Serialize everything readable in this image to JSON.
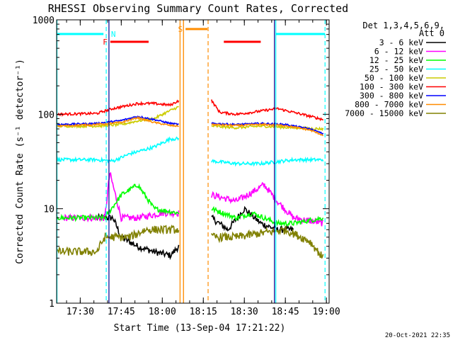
{
  "chart_data": {
    "type": "line",
    "title": "RHESSI Observing Summary Count Rates, Corrected",
    "xlabel": "Start Time (13-Sep-04 17:21:22)",
    "ylabel": "Corrected Count Rate (s⁻¹ detector⁻¹)",
    "x_ticks": [
      "17:30",
      "17:45",
      "18:00",
      "18:15",
      "18:30",
      "18:45",
      "19:00"
    ],
    "x_range": [
      "17:21:22",
      "19:01:00"
    ],
    "y_scale": "log",
    "y_range": [
      1,
      1000
    ],
    "y_ticks": [
      "1",
      "10",
      "100",
      "1000"
    ],
    "legend_title_1": "Det 1,3,4,5,6,9,",
    "legend_title_2": "Att 0",
    "legend_position": "right",
    "timestamp": "20-Oct-2021 22:35",
    "flags": [
      {
        "label": "N",
        "color": "#00ffff",
        "start": "17:40:30",
        "end": "17:41:30",
        "style": "label"
      },
      {
        "label": "F",
        "color": "#ff0000",
        "start": "17:41:00",
        "end": "17:55:00",
        "style": "bar"
      },
      {
        "label": "S",
        "color": "#ff8c00",
        "start": "18:08:30",
        "end": "18:16:30",
        "style": "bar"
      }
    ],
    "cyan_bars": [
      {
        "start": "17:21:22",
        "end": "17:38:30"
      },
      {
        "start": "18:41:30",
        "end": "18:59:30"
      }
    ],
    "vertical_lines": [
      {
        "time": "17:21:30",
        "color": "#00ffff",
        "dash": false
      },
      {
        "time": "17:39:30",
        "color": "#00ffff",
        "dash": true
      },
      {
        "time": "17:40:30",
        "color": "#00008b",
        "dash": false
      },
      {
        "time": "18:06:30",
        "color": "#ff8c00",
        "dash": false
      },
      {
        "time": "18:07:45",
        "color": "#ff8c00",
        "dash": false
      },
      {
        "time": "18:16:45",
        "color": "#ff8c00",
        "dash": true
      },
      {
        "time": "18:41:30",
        "color": "#00ffff",
        "dash": false
      },
      {
        "time": "18:41:00",
        "color": "#00008b",
        "dash": false
      },
      {
        "time": "18:59:30",
        "color": "#00ffff",
        "dash": true
      }
    ],
    "series": [
      {
        "name": "3 - 6 keV",
        "color": "#000000",
        "noise": 0.08,
        "seg1": [
          [
            17.6,
            8
          ],
          [
            17.7,
            8
          ],
          [
            17.75,
            5
          ],
          [
            17.85,
            4
          ],
          [
            17.95,
            3.5
          ],
          [
            18.05,
            3.2
          ],
          [
            18.1,
            4
          ]
        ],
        "seg2": [
          [
            18.3,
            8
          ],
          [
            18.4,
            6
          ],
          [
            18.5,
            10
          ],
          [
            18.6,
            7
          ],
          [
            18.7,
            6
          ],
          [
            18.8,
            6
          ]
        ]
      },
      {
        "name": "6 - 12 keV",
        "color": "#ff00ff",
        "noise": 0.08,
        "seg1": [
          [
            17.4,
            8
          ],
          [
            17.65,
            8
          ],
          [
            17.68,
            24
          ],
          [
            17.75,
            8
          ],
          [
            17.85,
            8
          ],
          [
            18.0,
            9
          ],
          [
            18.1,
            9
          ]
        ],
        "seg2": [
          [
            18.3,
            14
          ],
          [
            18.45,
            12
          ],
          [
            18.55,
            15
          ],
          [
            18.62,
            18
          ],
          [
            18.7,
            12
          ],
          [
            18.8,
            8
          ],
          [
            18.98,
            7
          ]
        ]
      },
      {
        "name": "12 - 25 keV",
        "color": "#00ff00",
        "noise": 0.06,
        "seg1": [
          [
            17.36,
            8
          ],
          [
            17.65,
            8
          ],
          [
            17.75,
            14
          ],
          [
            17.85,
            18
          ],
          [
            17.95,
            10
          ],
          [
            18.1,
            9
          ]
        ],
        "seg2": [
          [
            18.3,
            10
          ],
          [
            18.45,
            8
          ],
          [
            18.55,
            9
          ],
          [
            18.7,
            7
          ],
          [
            18.8,
            7
          ],
          [
            18.98,
            8
          ]
        ]
      },
      {
        "name": "25 - 50 keV",
        "color": "#00ffff",
        "noise": 0.04,
        "seg1": [
          [
            17.36,
            33
          ],
          [
            17.6,
            33
          ],
          [
            17.7,
            32
          ],
          [
            17.8,
            38
          ],
          [
            17.95,
            45
          ],
          [
            18.05,
            55
          ],
          [
            18.1,
            55
          ]
        ],
        "seg2": [
          [
            18.3,
            32
          ],
          [
            18.45,
            30
          ],
          [
            18.6,
            30
          ],
          [
            18.8,
            33
          ],
          [
            18.98,
            33
          ]
        ]
      },
      {
        "name": "50 - 100 keV",
        "color": "#cccc00",
        "noise": 0.03,
        "seg1": [
          [
            17.36,
            75
          ],
          [
            17.6,
            75
          ],
          [
            17.75,
            78
          ],
          [
            17.85,
            85
          ],
          [
            17.95,
            90
          ],
          [
            18.05,
            110
          ],
          [
            18.1,
            120
          ]
        ],
        "seg2": [
          [
            18.3,
            75
          ],
          [
            18.45,
            72
          ],
          [
            18.6,
            75
          ],
          [
            18.8,
            72
          ],
          [
            18.98,
            70
          ]
        ]
      },
      {
        "name": "100 - 300 keV",
        "color": "#ff0000",
        "noise": 0.03,
        "seg1": [
          [
            17.36,
            100
          ],
          [
            17.6,
            102
          ],
          [
            17.7,
            115
          ],
          [
            17.85,
            130
          ],
          [
            17.95,
            130
          ],
          [
            18.05,
            125
          ],
          [
            18.1,
            140
          ]
        ],
        "seg2": [
          [
            18.3,
            140
          ],
          [
            18.35,
            105
          ],
          [
            18.45,
            100
          ],
          [
            18.55,
            105
          ],
          [
            18.7,
            115
          ],
          [
            18.85,
            100
          ],
          [
            18.98,
            88
          ]
        ]
      },
      {
        "name": "300 - 800 keV",
        "color": "#0000ff",
        "noise": 0.02,
        "seg1": [
          [
            17.36,
            78
          ],
          [
            17.6,
            80
          ],
          [
            17.75,
            86
          ],
          [
            17.85,
            95
          ],
          [
            17.95,
            88
          ],
          [
            18.05,
            80
          ],
          [
            18.1,
            78
          ]
        ],
        "seg2": [
          [
            18.3,
            80
          ],
          [
            18.45,
            78
          ],
          [
            18.6,
            80
          ],
          [
            18.75,
            78
          ],
          [
            18.9,
            70
          ],
          [
            18.98,
            62
          ]
        ]
      },
      {
        "name": "800 - 7000 keV",
        "color": "#ff8c00",
        "noise": 0.02,
        "seg1": [
          [
            17.36,
            75
          ],
          [
            17.6,
            78
          ],
          [
            17.75,
            82
          ],
          [
            17.85,
            92
          ],
          [
            17.95,
            82
          ],
          [
            18.05,
            76
          ],
          [
            18.1,
            75
          ]
        ],
        "seg2": [
          [
            18.3,
            78
          ],
          [
            18.45,
            76
          ],
          [
            18.6,
            78
          ],
          [
            18.75,
            76
          ],
          [
            18.9,
            68
          ],
          [
            18.98,
            60
          ]
        ]
      },
      {
        "name": "7000 - 15000 keV",
        "color": "#808000",
        "noise": 0.1,
        "seg1": [
          [
            17.36,
            3.5
          ],
          [
            17.6,
            3.5
          ],
          [
            17.65,
            5
          ],
          [
            17.8,
            5
          ],
          [
            17.9,
            6
          ],
          [
            18.0,
            6
          ],
          [
            18.1,
            6
          ]
        ],
        "seg2": [
          [
            18.3,
            5
          ],
          [
            18.45,
            5
          ],
          [
            18.6,
            5.5
          ],
          [
            18.75,
            6
          ],
          [
            18.9,
            4.5
          ],
          [
            18.98,
            3
          ]
        ]
      }
    ]
  }
}
